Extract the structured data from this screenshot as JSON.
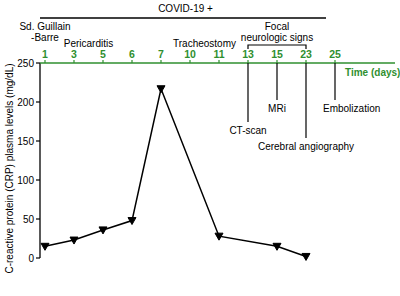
{
  "chart_data": {
    "type": "line",
    "x_label": "Time (days)",
    "y_label": "C-reactive protein (CRP) plasma levels (mg/dL)",
    "categories": [
      1,
      3,
      5,
      6,
      7,
      10,
      11,
      13,
      15,
      23,
      25
    ],
    "series": [
      {
        "x": [
          1,
          3,
          5,
          6,
          7,
          11,
          15,
          23
        ],
        "values": [
          15,
          23,
          36,
          48,
          217,
          28,
          15,
          2
        ],
        "color": "#000000",
        "marker": "triangle-down"
      }
    ],
    "ylim": [
      0,
      250
    ],
    "yticks": [
      0,
      50,
      100,
      150,
      200,
      250
    ],
    "period": {
      "text": "COVID-19 +",
      "x": [
        1,
        23
      ]
    },
    "events_above": [
      {
        "text": [
          "Sd. Guillain",
          "-Barre"
        ],
        "x": 1
      },
      {
        "text": [
          "Pericarditis"
        ],
        "x": 4
      },
      {
        "text": [
          "Tracheostomy"
        ],
        "x": 10.5
      },
      {
        "text": [
          "Focal",
          "neurologic signs"
        ],
        "x": [
          13,
          23
        ]
      }
    ],
    "events_below": [
      {
        "text": "CT-scan",
        "x": 13
      },
      {
        "text": "MRi",
        "x": 15
      },
      {
        "text": "Cerebral angiography",
        "x": 23
      },
      {
        "text": "Embolization",
        "x": 25
      }
    ]
  }
}
